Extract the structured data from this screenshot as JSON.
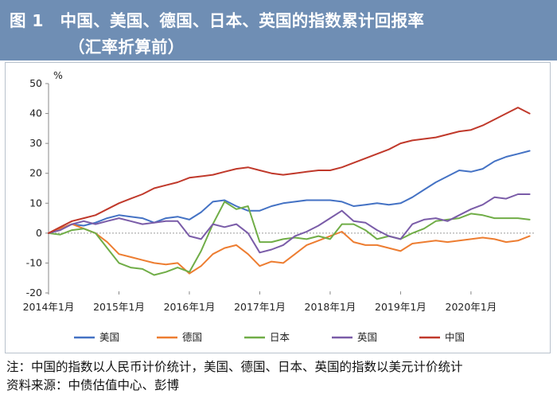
{
  "header": {
    "title": "图 1　中国、美国、德国、日本、英国的指数累计回报率",
    "subtitle": "（汇率折算前）"
  },
  "footer": {
    "note": "注：中国的指数以人民币计价统计，美国、德国、日本、英国的指数以美元计价统计",
    "source": "资料来源：中债估值中心、彭博"
  },
  "chart_data": {
    "type": "line",
    "title": "",
    "xlabel": "",
    "ylabel": "%",
    "ylim": [
      -20,
      50
    ],
    "yticks": [
      -20,
      -10,
      0,
      10,
      20,
      30,
      40,
      50
    ],
    "xlim": [
      0,
      83
    ],
    "xticks": [
      {
        "label": "2014年1月",
        "x": 0
      },
      {
        "label": "2015年1月",
        "x": 12
      },
      {
        "label": "2016年1月",
        "x": 24
      },
      {
        "label": "2017年1月",
        "x": 36
      },
      {
        "label": "2018年1月",
        "x": 48
      },
      {
        "label": "2019年1月",
        "x": 60
      },
      {
        "label": "2020年1月",
        "x": 72
      }
    ],
    "grid": false,
    "legend_position": "bottom",
    "series": [
      {
        "name": "美国",
        "color": "#4472c4",
        "points": [
          [
            0,
            0
          ],
          [
            2,
            1.5
          ],
          [
            4,
            3
          ],
          [
            6,
            2.5
          ],
          [
            8,
            3.5
          ],
          [
            10,
            5
          ],
          [
            12,
            6
          ],
          [
            14,
            5.5
          ],
          [
            16,
            5
          ],
          [
            18,
            3.5
          ],
          [
            20,
            5
          ],
          [
            22,
            5.5
          ],
          [
            24,
            4.5
          ],
          [
            26,
            7
          ],
          [
            28,
            10.5
          ],
          [
            30,
            11
          ],
          [
            32,
            9
          ],
          [
            34,
            7.5
          ],
          [
            36,
            7.5
          ],
          [
            38,
            9
          ],
          [
            40,
            10
          ],
          [
            42,
            10.5
          ],
          [
            44,
            11
          ],
          [
            46,
            11
          ],
          [
            48,
            11
          ],
          [
            50,
            10.5
          ],
          [
            52,
            9
          ],
          [
            54,
            9.5
          ],
          [
            56,
            10
          ],
          [
            58,
            9.5
          ],
          [
            60,
            10
          ],
          [
            62,
            12
          ],
          [
            64,
            14.5
          ],
          [
            66,
            17
          ],
          [
            68,
            19
          ],
          [
            70,
            21
          ],
          [
            72,
            20.5
          ],
          [
            74,
            21.5
          ],
          [
            76,
            24
          ],
          [
            78,
            25.5
          ],
          [
            80,
            26.5
          ],
          [
            82,
            27.5
          ]
        ]
      },
      {
        "name": "德国",
        "color": "#ed7d31",
        "points": [
          [
            0,
            0
          ],
          [
            2,
            1.5
          ],
          [
            4,
            3
          ],
          [
            6,
            1.5
          ],
          [
            8,
            0
          ],
          [
            10,
            -3
          ],
          [
            12,
            -7
          ],
          [
            14,
            -8
          ],
          [
            16,
            -9
          ],
          [
            18,
            -10
          ],
          [
            20,
            -10.5
          ],
          [
            22,
            -10
          ],
          [
            24,
            -13.5
          ],
          [
            26,
            -11
          ],
          [
            28,
            -7
          ],
          [
            30,
            -5
          ],
          [
            32,
            -4
          ],
          [
            34,
            -7
          ],
          [
            36,
            -11
          ],
          [
            38,
            -9.5
          ],
          [
            40,
            -10
          ],
          [
            42,
            -7
          ],
          [
            44,
            -4
          ],
          [
            46,
            -2.5
          ],
          [
            48,
            -1
          ],
          [
            50,
            0.5
          ],
          [
            52,
            -3
          ],
          [
            54,
            -4
          ],
          [
            56,
            -4
          ],
          [
            58,
            -5
          ],
          [
            60,
            -6
          ],
          [
            62,
            -3.5
          ],
          [
            64,
            -3
          ],
          [
            66,
            -2.5
          ],
          [
            68,
            -3
          ],
          [
            70,
            -2.5
          ],
          [
            72,
            -2
          ],
          [
            74,
            -1.5
          ],
          [
            76,
            -2
          ],
          [
            78,
            -3
          ],
          [
            80,
            -2.5
          ],
          [
            82,
            -1
          ]
        ]
      },
      {
        "name": "日本",
        "color": "#70ad47",
        "points": [
          [
            0,
            0
          ],
          [
            2,
            -0.5
          ],
          [
            4,
            1
          ],
          [
            6,
            1.5
          ],
          [
            8,
            0
          ],
          [
            10,
            -5
          ],
          [
            12,
            -10
          ],
          [
            14,
            -11.5
          ],
          [
            16,
            -12
          ],
          [
            18,
            -14
          ],
          [
            20,
            -13
          ],
          [
            22,
            -11.5
          ],
          [
            24,
            -13
          ],
          [
            26,
            -6
          ],
          [
            28,
            3
          ],
          [
            30,
            10.5
          ],
          [
            32,
            8
          ],
          [
            34,
            9
          ],
          [
            36,
            -3
          ],
          [
            38,
            -3
          ],
          [
            40,
            -2
          ],
          [
            42,
            -1.5
          ],
          [
            44,
            -2
          ],
          [
            46,
            -1
          ],
          [
            48,
            -2
          ],
          [
            50,
            3
          ],
          [
            52,
            3
          ],
          [
            54,
            1
          ],
          [
            56,
            -2
          ],
          [
            58,
            -1
          ],
          [
            60,
            -2
          ],
          [
            62,
            0
          ],
          [
            64,
            1.5
          ],
          [
            66,
            4
          ],
          [
            68,
            4.5
          ],
          [
            70,
            5
          ],
          [
            72,
            6.5
          ],
          [
            74,
            6
          ],
          [
            76,
            5
          ],
          [
            78,
            5
          ],
          [
            80,
            5
          ],
          [
            82,
            4.5
          ]
        ]
      },
      {
        "name": "英国",
        "color": "#7a5ca8",
        "points": [
          [
            0,
            0
          ],
          [
            2,
            1
          ],
          [
            4,
            3
          ],
          [
            6,
            4
          ],
          [
            8,
            3
          ],
          [
            10,
            4
          ],
          [
            12,
            5
          ],
          [
            14,
            4
          ],
          [
            16,
            3
          ],
          [
            18,
            3.5
          ],
          [
            20,
            4
          ],
          [
            22,
            4
          ],
          [
            24,
            -1
          ],
          [
            26,
            -2
          ],
          [
            28,
            3
          ],
          [
            30,
            2
          ],
          [
            32,
            3
          ],
          [
            34,
            0
          ],
          [
            36,
            -6.5
          ],
          [
            38,
            -5.5
          ],
          [
            40,
            -4
          ],
          [
            42,
            -1
          ],
          [
            44,
            0.5
          ],
          [
            46,
            2.5
          ],
          [
            48,
            5
          ],
          [
            50,
            7.5
          ],
          [
            52,
            4
          ],
          [
            54,
            3.5
          ],
          [
            56,
            1
          ],
          [
            58,
            -1
          ],
          [
            60,
            -2
          ],
          [
            62,
            3
          ],
          [
            64,
            4.5
          ],
          [
            66,
            5
          ],
          [
            68,
            4
          ],
          [
            70,
            6
          ],
          [
            72,
            8
          ],
          [
            74,
            9.5
          ],
          [
            76,
            12
          ],
          [
            78,
            11.5
          ],
          [
            80,
            13
          ],
          [
            82,
            13
          ]
        ]
      },
      {
        "name": "中国",
        "color": "#c0392b",
        "points": [
          [
            0,
            0
          ],
          [
            2,
            2
          ],
          [
            4,
            4
          ],
          [
            6,
            5
          ],
          [
            8,
            6
          ],
          [
            10,
            8
          ],
          [
            12,
            10
          ],
          [
            14,
            11.5
          ],
          [
            16,
            13
          ],
          [
            18,
            15
          ],
          [
            20,
            16
          ],
          [
            22,
            17
          ],
          [
            24,
            18.5
          ],
          [
            26,
            19
          ],
          [
            28,
            19.5
          ],
          [
            30,
            20.5
          ],
          [
            32,
            21.5
          ],
          [
            34,
            22
          ],
          [
            36,
            21
          ],
          [
            38,
            20
          ],
          [
            40,
            19.5
          ],
          [
            42,
            20
          ],
          [
            44,
            20.5
          ],
          [
            46,
            21
          ],
          [
            48,
            21
          ],
          [
            50,
            22
          ],
          [
            52,
            23.5
          ],
          [
            54,
            25
          ],
          [
            56,
            26.5
          ],
          [
            58,
            28
          ],
          [
            60,
            30
          ],
          [
            62,
            31
          ],
          [
            64,
            31.5
          ],
          [
            66,
            32
          ],
          [
            68,
            33
          ],
          [
            70,
            34
          ],
          [
            72,
            34.5
          ],
          [
            74,
            36
          ],
          [
            76,
            38
          ],
          [
            78,
            40
          ],
          [
            80,
            42
          ],
          [
            82,
            40
          ]
        ]
      }
    ]
  }
}
